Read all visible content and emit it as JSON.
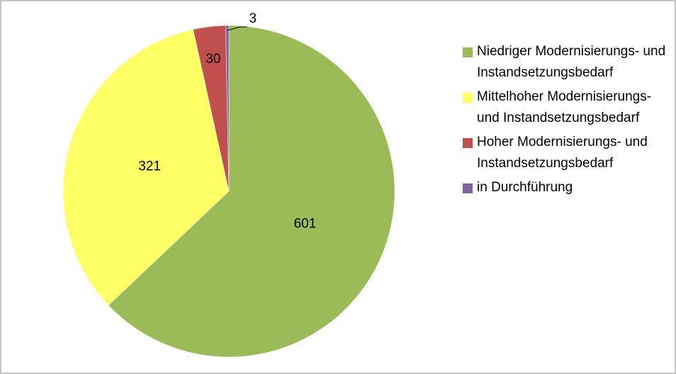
{
  "chart_data": {
    "type": "pie",
    "categories": [
      "Niedriger Modernisierungs- und Instandsetzungsbedarf",
      "Mittelhoher Modernisierungs- und Instandsetzungsbedarf",
      "Hoher Modernisierungs- und Instandsetzungsbedarf",
      "in Durchführung"
    ],
    "values": [
      601,
      321,
      30,
      3
    ],
    "colors": [
      "#9bbb59",
      "#ffff66",
      "#c0504d",
      "#8064a2"
    ],
    "legend": "right"
  }
}
